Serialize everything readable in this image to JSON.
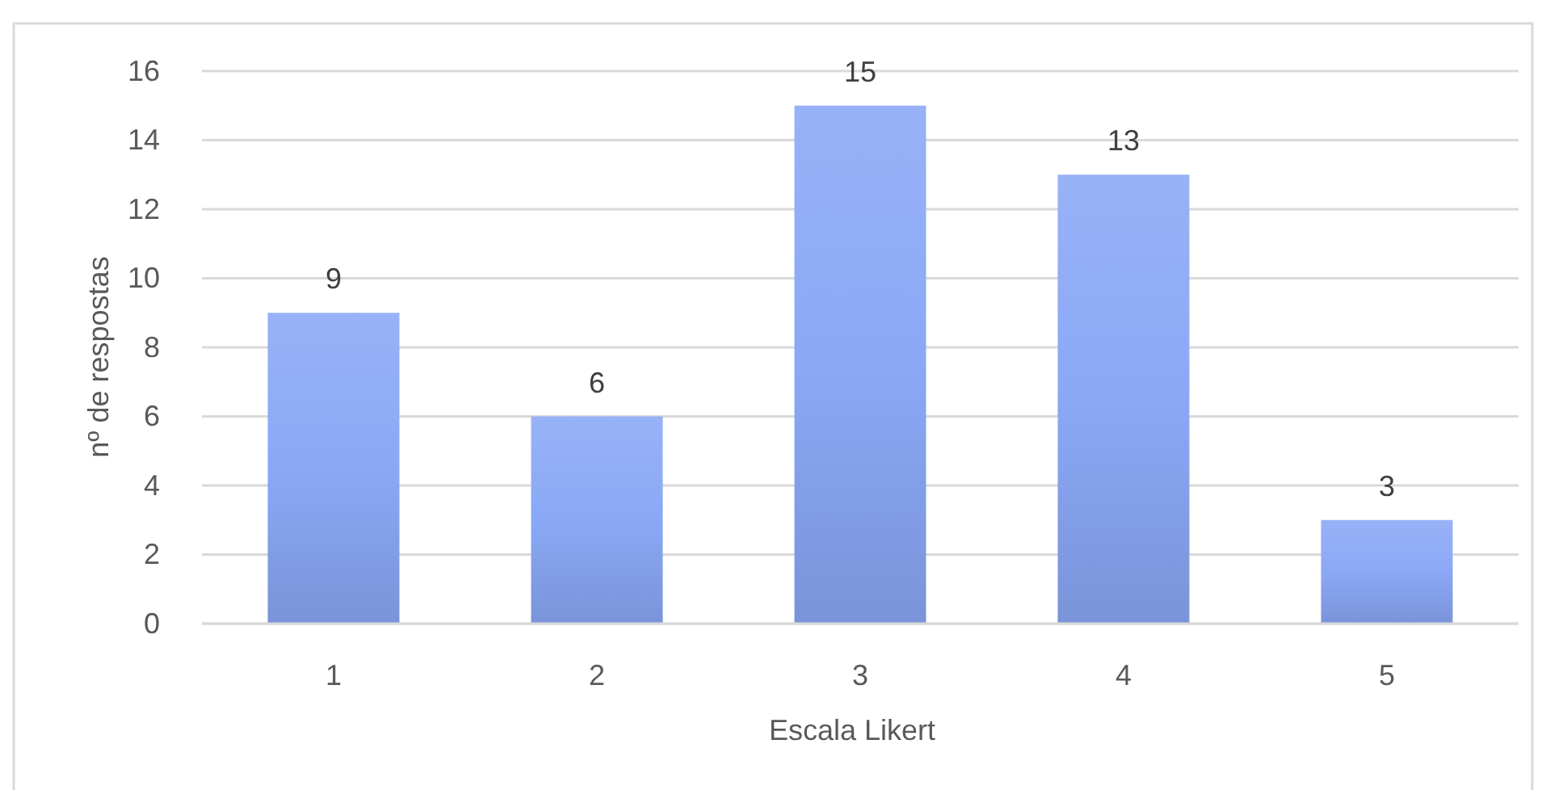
{
  "chart_data": {
    "type": "bar",
    "xlabel": "Escala Likert",
    "ylabel": "nº de respostas",
    "categories": [
      "1",
      "2",
      "3",
      "4",
      "5"
    ],
    "values": [
      9,
      6,
      15,
      13,
      3
    ],
    "color": "#8aa8f6",
    "ylim": [
      0,
      16
    ],
    "yticks": [
      0,
      2,
      4,
      6,
      8,
      10,
      12,
      14,
      16
    ],
    "grid": "y",
    "data_labels": true
  }
}
